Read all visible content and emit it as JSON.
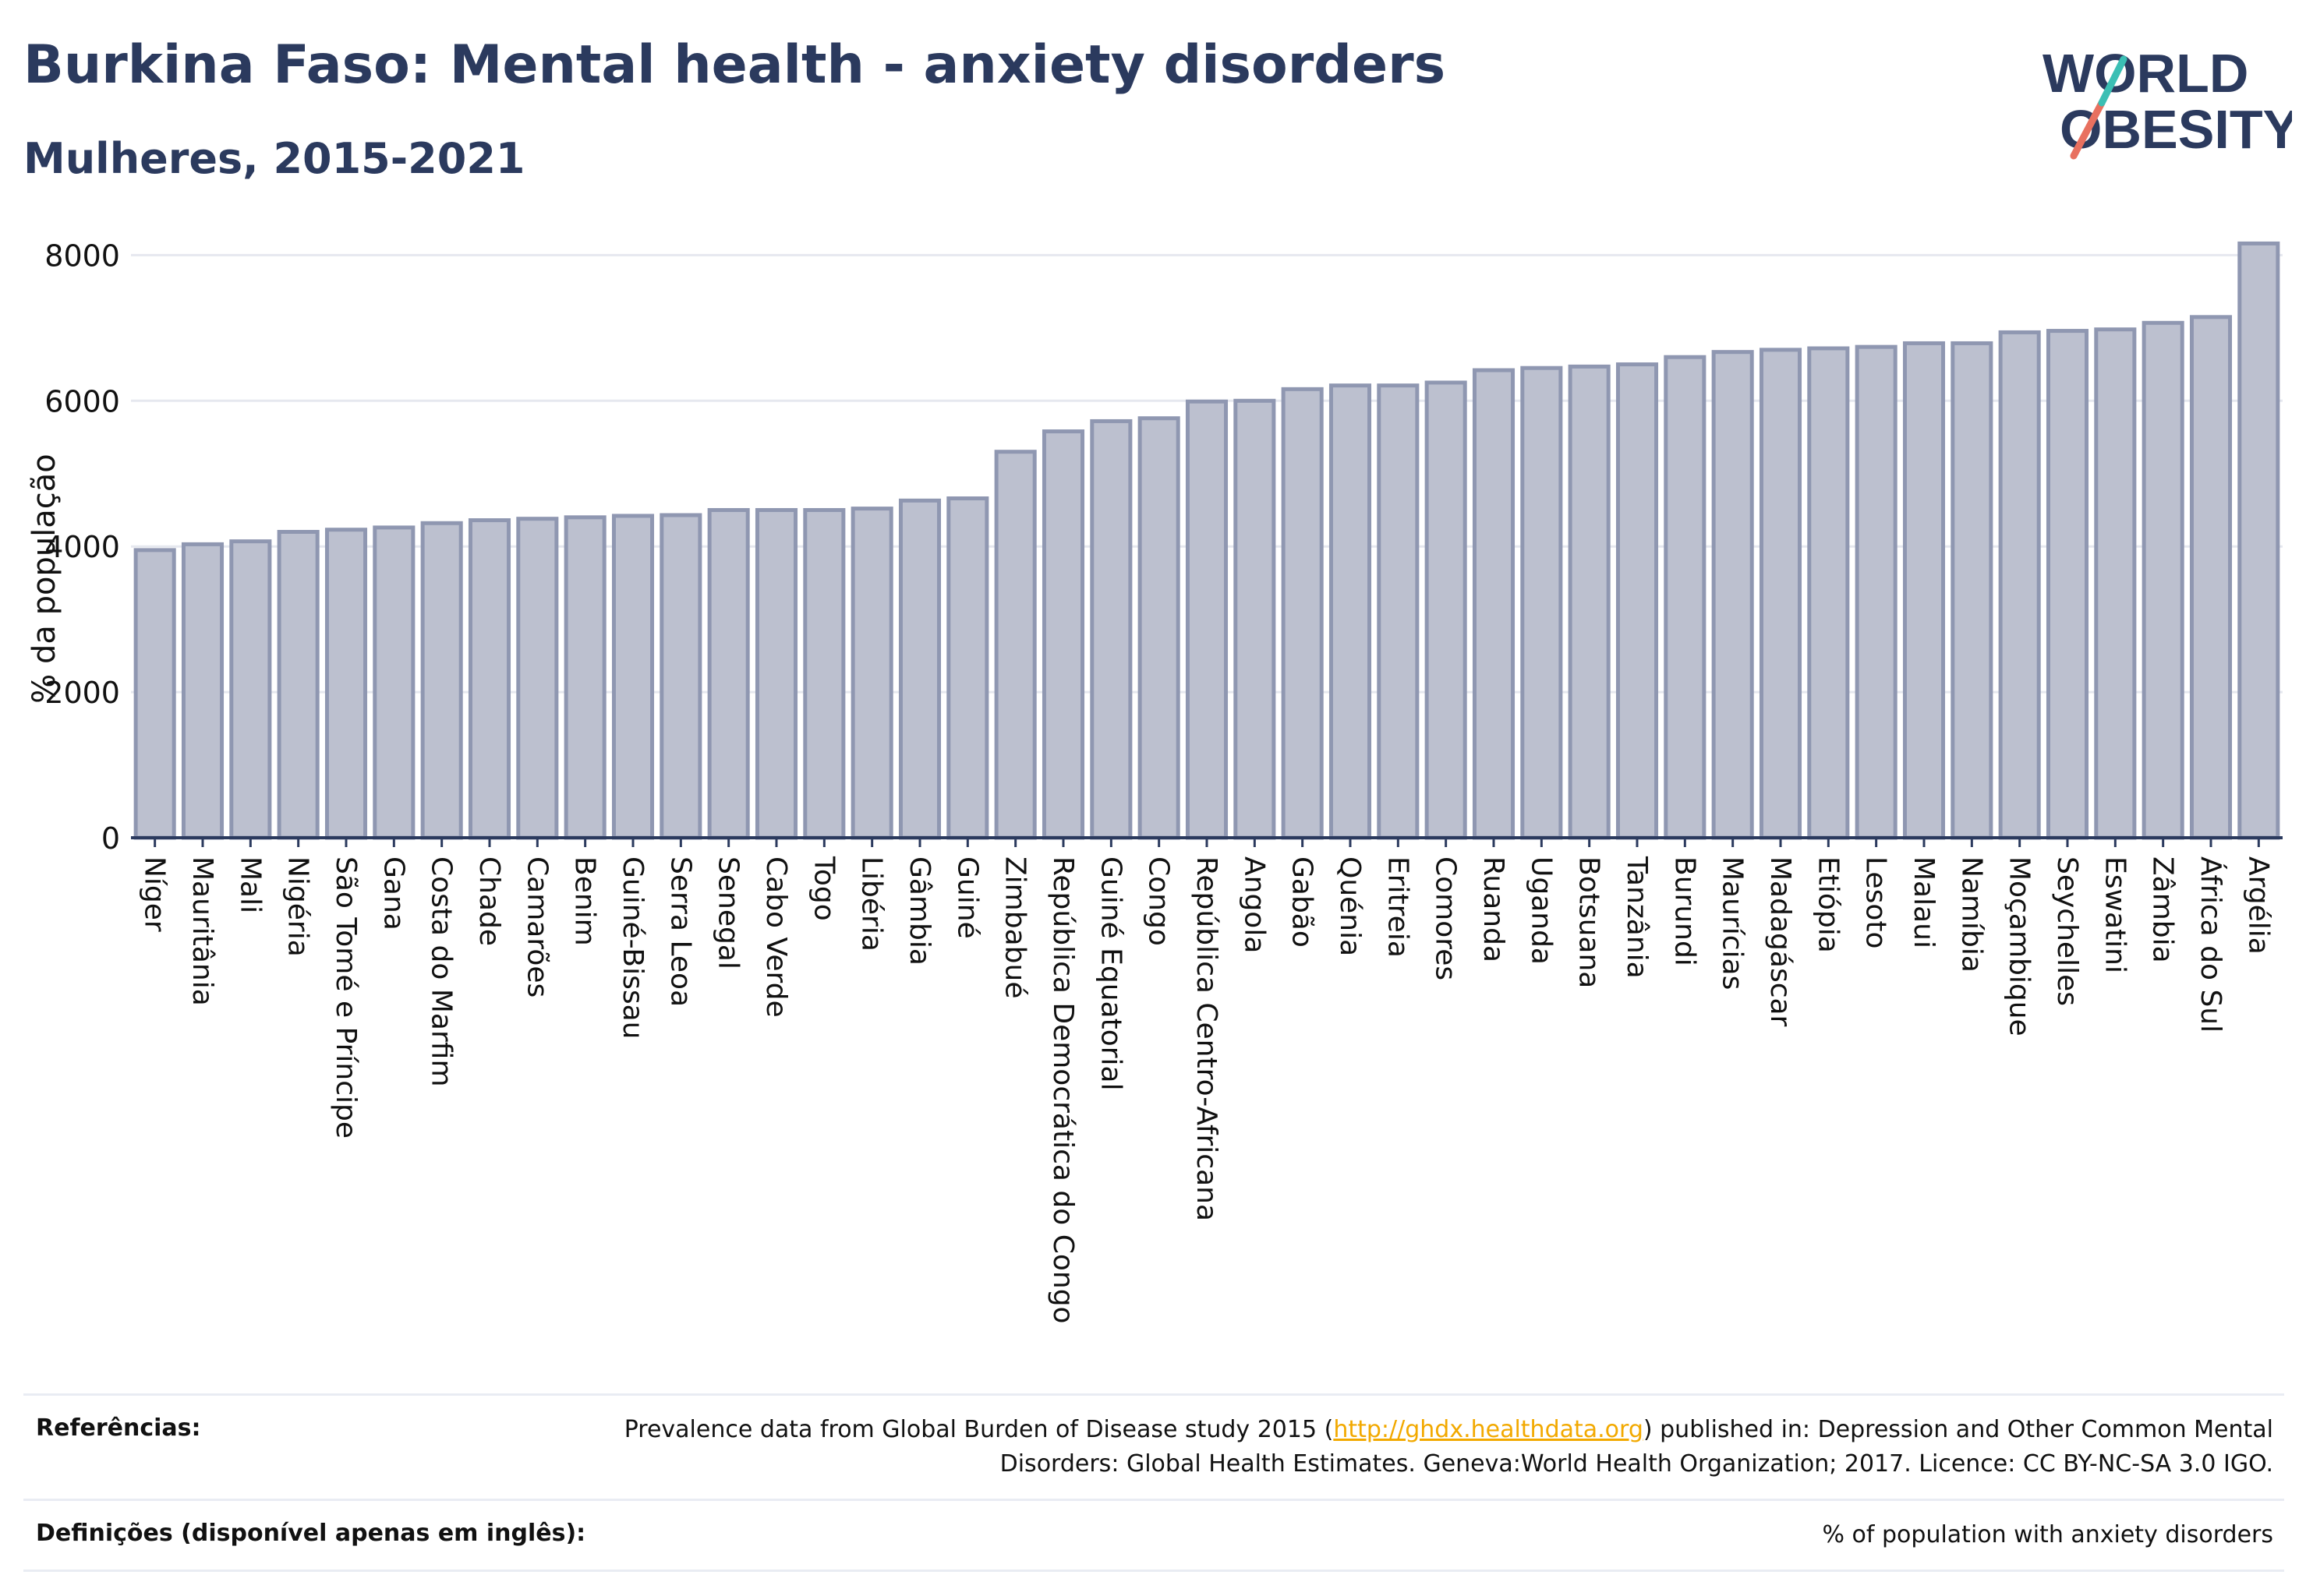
{
  "header": {
    "title": "Burkina Faso: Mental health - anxiety disorders",
    "subtitle": "Mulheres, 2015-2021"
  },
  "logo": {
    "line1": "WORLD",
    "line2": "OBESITY",
    "colors": {
      "text": "#2b3a5e",
      "slash_teal": "#3bbfb4",
      "slash_coral": "#e8705f"
    }
  },
  "colors": {
    "bar_fill": "#bcc0cf",
    "bar_stroke": "#8f97b1",
    "axis": "#2b3a5e",
    "grid": "#e6e8ef",
    "link": "#f2a900"
  },
  "chart_data": {
    "type": "bar",
    "title": "Burkina Faso: Mental health - anxiety disorders",
    "subtitle": "Mulheres, 2015-2021",
    "xlabel": "",
    "ylabel": "% da população",
    "ylim": [
      0,
      8400
    ],
    "yticks": [
      0,
      2000,
      4000,
      6000,
      8000
    ],
    "grid": true,
    "categories": [
      "Níger",
      "Mauritânia",
      "Mali",
      "Nigéria",
      "São Tomé e Príncipe",
      "Gana",
      "Costa do Marfim",
      "Chade",
      "Camarões",
      "Benim",
      "Guiné-Bissau",
      "Serra Leoa",
      "Senegal",
      "Cabo Verde",
      "Togo",
      "Libéria",
      "Gâmbia",
      "Guiné",
      "Zimbabué",
      "República Democrática do Congo",
      "Guiné Equatorial",
      "Congo",
      "República Centro-Africana",
      "Angola",
      "Gabão",
      "Quénia",
      "Eritreia",
      "Comores",
      "Ruanda",
      "Uganda",
      "Botsuana",
      "Tanzânia",
      "Burundi",
      "Maurícias",
      "Madagáscar",
      "Etiópia",
      "Lesoto",
      "Malaui",
      "Namíbia",
      "Moçambique",
      "Seychelles",
      "Eswatini",
      "Zâmbia",
      "África do Sul",
      "Argélia"
    ],
    "values": [
      3950,
      4030,
      4070,
      4200,
      4230,
      4260,
      4320,
      4360,
      4380,
      4400,
      4420,
      4430,
      4500,
      4500,
      4500,
      4520,
      4630,
      4660,
      5300,
      5580,
      5720,
      5760,
      5990,
      6000,
      6160,
      6210,
      6210,
      6250,
      6420,
      6450,
      6470,
      6500,
      6600,
      6670,
      6700,
      6720,
      6740,
      6790,
      6790,
      6940,
      6960,
      6980,
      7070,
      7150,
      8160
    ]
  },
  "references": {
    "refs_label": "Referências:",
    "refs_text_before": "Prevalence data from Global Burden of Disease study 2015 (",
    "refs_link": "http://ghdx.healthdata.org",
    "refs_text_after": ") published in: Depression and Other Common Mental Disorders: Global Health Estimates. Geneva:World Health Organization; 2017. Licence: CC BY-NC-SA 3.0 IGO.",
    "defs_label": "Definições (disponível apenas em inglês):",
    "defs_text": "% of population with anxiety disorders"
  }
}
